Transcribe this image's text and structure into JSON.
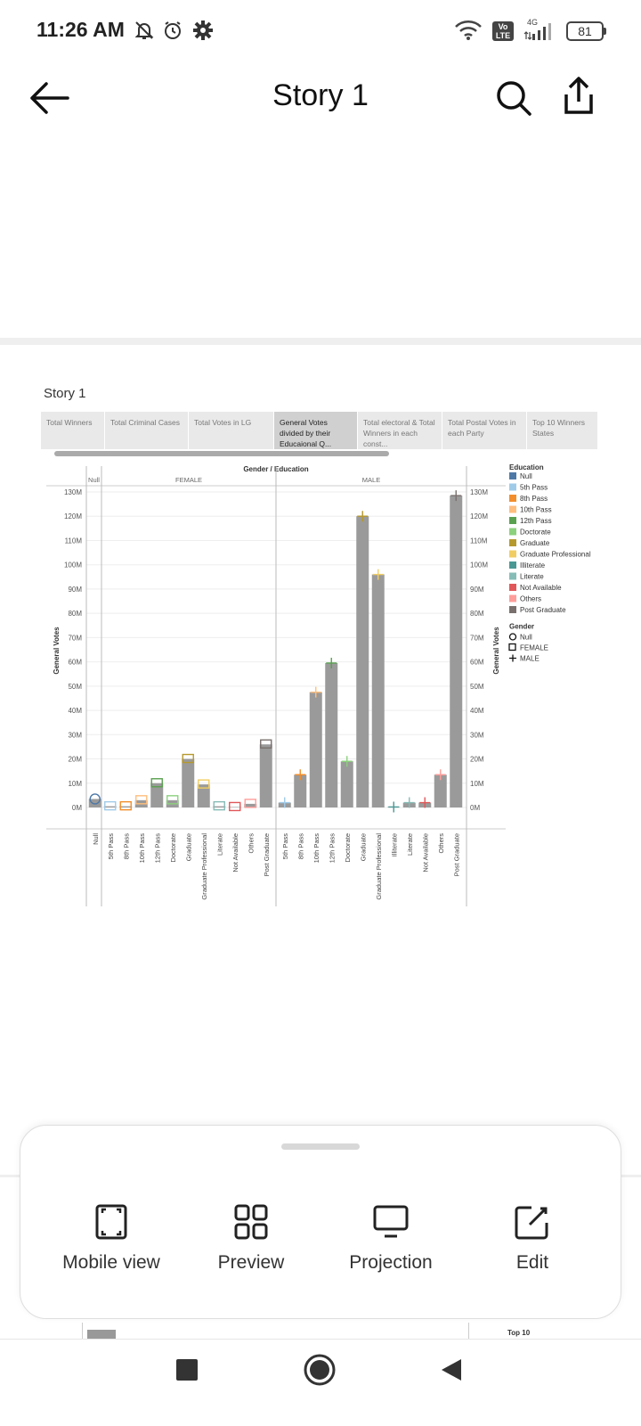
{
  "status_bar": {
    "time": "11:26 AM",
    "volte": "Vo LTE",
    "network": "4G",
    "battery": "81",
    "icons": [
      "mute-icon",
      "alarm-icon",
      "gear-icon",
      "wifi-icon",
      "volte-icon",
      "signal-icon",
      "battery-icon"
    ]
  },
  "app_bar": {
    "title": "Story 1",
    "icons": [
      "back-arrow-icon",
      "search-icon",
      "share-icon"
    ]
  },
  "story": {
    "title": "Story 1",
    "tabs": [
      {
        "label": "Total Winners",
        "active": false
      },
      {
        "label": "Total Criminal Cases",
        "active": false
      },
      {
        "label": "Total Votes in LG",
        "active": false
      },
      {
        "label": "General Votes divided by their Educaional Q...",
        "active": true
      },
      {
        "label": "Total electoral & Total Winners in each const...",
        "active": false
      },
      {
        "label": "Total Postal Votes in each Party",
        "active": false
      },
      {
        "label": "Top 10 Winners States",
        "active": false
      }
    ]
  },
  "chart_data": {
    "type": "bar",
    "title": "Gender / Education",
    "ylabel": "General Votes",
    "ylim": [
      0,
      130
    ],
    "y_unit": "M",
    "y_ticks": [
      "130M",
      "120M",
      "110M",
      "100M",
      "90M",
      "80M",
      "70M",
      "60M",
      "50M",
      "40M",
      "30M",
      "20M",
      "10M",
      "0M"
    ],
    "panels": [
      {
        "header": "Null",
        "gender_mark": "circle",
        "categories": [
          "Null"
        ],
        "values": [
          3.5
        ],
        "colors": [
          "#4e79a7"
        ]
      },
      {
        "header": "FEMALE",
        "gender_mark": "square",
        "categories": [
          "5th Pass",
          "8th Pass",
          "10th Pass",
          "12th Pass",
          "Doctorate",
          "Graduate",
          "Graduate Professional",
          "Literate",
          "Not Available",
          "Others",
          "Post Graduate"
        ],
        "values": [
          0.5,
          0.5,
          3,
          10,
          3,
          20,
          9.5,
          0.5,
          0.2,
          1.5,
          26
        ],
        "colors": [
          "#a0cbe8",
          "#f28e2b",
          "#ffbe7d",
          "#59a14f",
          "#8cd17d",
          "#b6992d",
          "#f1ce63",
          "#86bcb6",
          "#e15759",
          "#ff9d9a",
          "#79706e"
        ]
      },
      {
        "header": "MALE",
        "gender_mark": "plus",
        "categories": [
          "5th Pass",
          "8th Pass",
          "10th Pass",
          "12th Pass",
          "Doctorate",
          "Graduate",
          "Graduate Professional",
          "Illiterate",
          "Literate",
          "Not Available",
          "Others",
          "Post Graduate"
        ],
        "values": [
          2,
          13.5,
          47.5,
          59.5,
          19,
          120,
          96,
          0.2,
          2,
          2,
          13.5,
          128.5
        ],
        "colors": [
          "#a0cbe8",
          "#f28e2b",
          "#ffbe7d",
          "#59a14f",
          "#8cd17d",
          "#b6992d",
          "#f1ce63",
          "#499894",
          "#86bcb6",
          "#e15759",
          "#ff9d9a",
          "#79706e"
        ]
      }
    ],
    "legend": {
      "education_title": "Education",
      "education_items": [
        {
          "label": "Null",
          "color": "#4e79a7"
        },
        {
          "label": "5th Pass",
          "color": "#a0cbe8"
        },
        {
          "label": "8th Pass",
          "color": "#f28e2b"
        },
        {
          "label": "10th Pass",
          "color": "#ffbe7d"
        },
        {
          "label": "12th Pass",
          "color": "#59a14f"
        },
        {
          "label": "Doctorate",
          "color": "#8cd17d"
        },
        {
          "label": "Graduate",
          "color": "#b6992d"
        },
        {
          "label": "Graduate Professional",
          "color": "#f1ce63"
        },
        {
          "label": "Illiterate",
          "color": "#499894"
        },
        {
          "label": "Literate",
          "color": "#86bcb6"
        },
        {
          "label": "Not Available",
          "color": "#e15759"
        },
        {
          "label": "Others",
          "color": "#ff9d9a"
        },
        {
          "label": "Post Graduate",
          "color": "#79706e"
        }
      ],
      "gender_title": "Gender",
      "gender_items": [
        {
          "label": "Null",
          "mark": "circle"
        },
        {
          "label": "FEMALE",
          "mark": "square"
        },
        {
          "label": "MALE",
          "mark": "plus"
        }
      ],
      "placement": "right"
    },
    "bar_color": "#9a9a9a",
    "grid": true
  },
  "bottom_sheet": {
    "items": [
      {
        "label": "Mobile view",
        "icon": "mobile-view-icon"
      },
      {
        "label": "Preview",
        "icon": "preview-grid-icon"
      },
      {
        "label": "Projection",
        "icon": "projection-monitor-icon"
      },
      {
        "label": "Edit",
        "icon": "edit-icon"
      }
    ]
  },
  "peek": {
    "label": "Top 10"
  },
  "nav_bar": {
    "icons": [
      "recents-square-icon",
      "home-circle-icon",
      "back-triangle-icon"
    ]
  }
}
